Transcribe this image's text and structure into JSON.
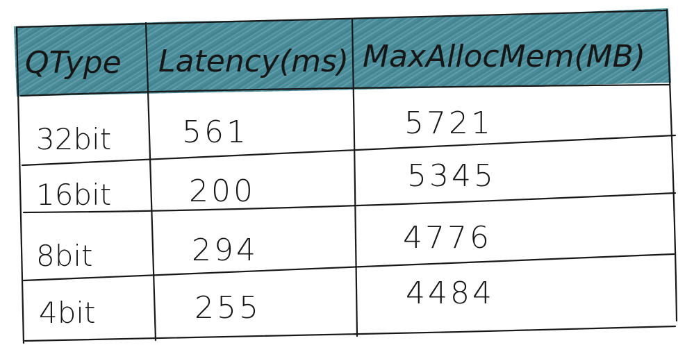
{
  "colors": {
    "header_fill": "#3f8493",
    "header_fill_light": "#6aa5b1",
    "ink": "#161616",
    "background": "#ffffff"
  },
  "chart_data": {
    "type": "table",
    "columns": [
      "QType",
      "Latency(ms)",
      "MaxAllocMem(MB)"
    ],
    "rows": [
      [
        "32bit",
        "561",
        "5721"
      ],
      [
        "16bit",
        "200",
        "5345"
      ],
      [
        "8bit",
        "294",
        "4776"
      ],
      [
        "4bit",
        "255",
        "4484"
      ]
    ]
  }
}
